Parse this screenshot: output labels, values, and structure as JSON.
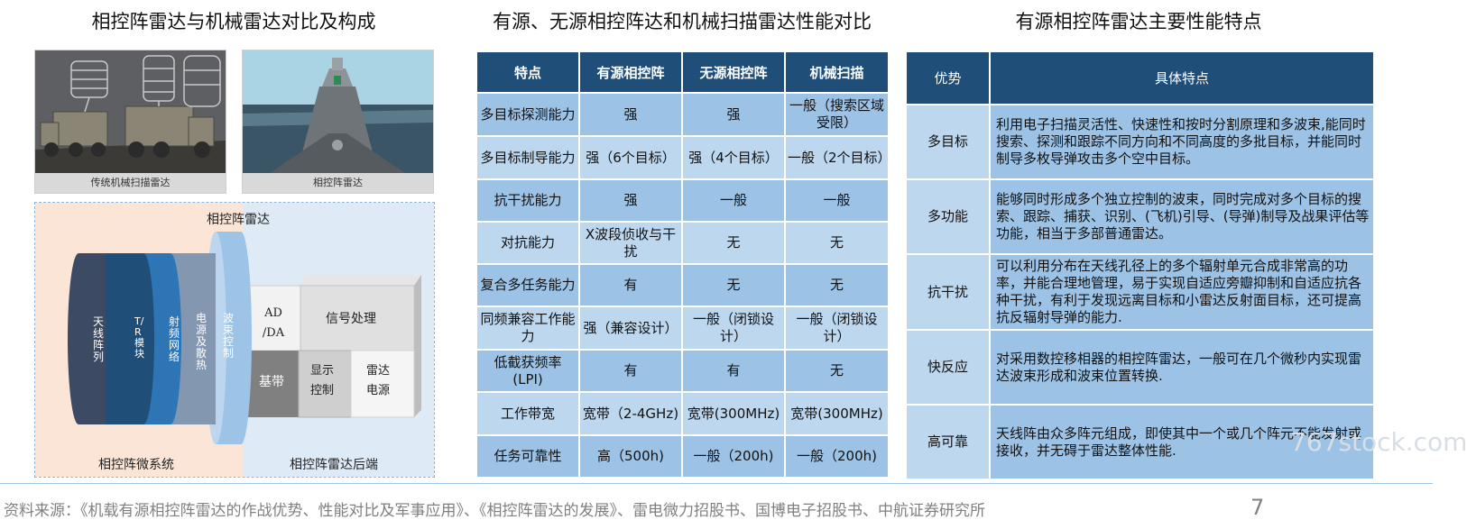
{
  "titles": {
    "left": "相控阵雷达与机械雷达对比及构成",
    "middle": "有源、无源相控阵达和机械扫描雷达性能对比",
    "right": "有源相控阵雷达主要性能特点"
  },
  "photos": [
    {
      "caption": "传统机械扫描雷达",
      "icon": "military-trucks-radar-photo"
    },
    {
      "caption": "相控阵雷达",
      "icon": "warship-radar-photo"
    }
  ],
  "diagram": {
    "top_label": "相控阵雷达",
    "layers": [
      "天线阵列",
      "T/R 模块",
      "射频网络",
      "电源及散热",
      "波束控制"
    ],
    "boxes": {
      "adda": "AD /DA",
      "signal": "信号处理",
      "baseband": "基带",
      "display": "显示 控制",
      "power": "雷达 电源"
    },
    "bottom_left": "相控阵微系统",
    "bottom_right": "相控阵雷达后端",
    "colors": {
      "layer1": "#3d4a63",
      "layer2": "#1f4e79",
      "layer3": "#2e75b6",
      "layer4": "#8497b0",
      "layer5": "#9dc3e6",
      "microsystem_bg": "#fbe5d6",
      "backend_bg": "#deebf7"
    }
  },
  "comparison": {
    "headers": [
      "特点",
      "有源相控阵",
      "无源相控阵",
      "机械扫描"
    ],
    "rows": [
      [
        "多目标探测能力",
        "强",
        "强",
        "一般（搜索区域受限）"
      ],
      [
        "多目标制导能力",
        "强（6个目标）",
        "强（4个目标）",
        "一般（2个目标）"
      ],
      [
        "抗干扰能力",
        "强",
        "一般",
        "一般"
      ],
      [
        "对抗能力",
        "X波段侦收与干扰",
        "无",
        "无"
      ],
      [
        "复合多任务能力",
        "有",
        "无",
        "无"
      ],
      [
        "同频兼容工作能力",
        "强（兼容设计）",
        "一般（闭锁设计）",
        "一般（闭锁设计）"
      ],
      [
        "低截获频率(LPI)",
        "有",
        "有",
        "无"
      ],
      [
        "工作带宽",
        "宽带（2-4GHz)",
        "宽带(300MHz)",
        "宽带(300MHz)"
      ],
      [
        "任务可靠性",
        "高（500h)",
        "一般（200h)",
        "一般（200h)"
      ]
    ]
  },
  "features": {
    "headers": [
      "优势",
      "具体特点"
    ],
    "rows": [
      [
        "多目标",
        "利用电子扫描灵活性、快速性和按时分割原理和多波束,能同时搜索、探测和跟踪不同方向和不同高度的多批目标，并能同时制导多枚导弹攻击多个空中目标。"
      ],
      [
        "多功能",
        "能够同时形成多个独立控制的波束，同时完成对多个目标的搜索、跟踪、捕获、识别、(飞机)引导、(导弹)制导及战果评估等功能，相当于多部普通雷达。"
      ],
      [
        "抗干扰",
        "可以利用分布在天线孔径上的多个辐射单元合成非常高的功率，并能合理地管理，易于实现自适应旁瓣抑制和自适应抗各种干扰，有利于发现远离目标和小雷达反射面目标，还可提高抗反辐射导弹的能力."
      ],
      [
        "快反应",
        "对采用数控移相器的相控阵雷达，一般可在几个微秒内实现雷达波束形成和波束位置转换."
      ],
      [
        "高可靠",
        "天线阵由众多阵元组成，即使其中一个或几个阵元不能发射或接收，并无碍于雷达整体性能."
      ]
    ]
  },
  "footer": {
    "source": "资料来源：《机载有源相控阵雷达的作战优势、性能对比及军事应用》、《相控阵雷达的发展》、雷电微力招股书、国博电子招股书、中航证券研究所",
    "page": "7",
    "watermark": "767stock.com"
  }
}
